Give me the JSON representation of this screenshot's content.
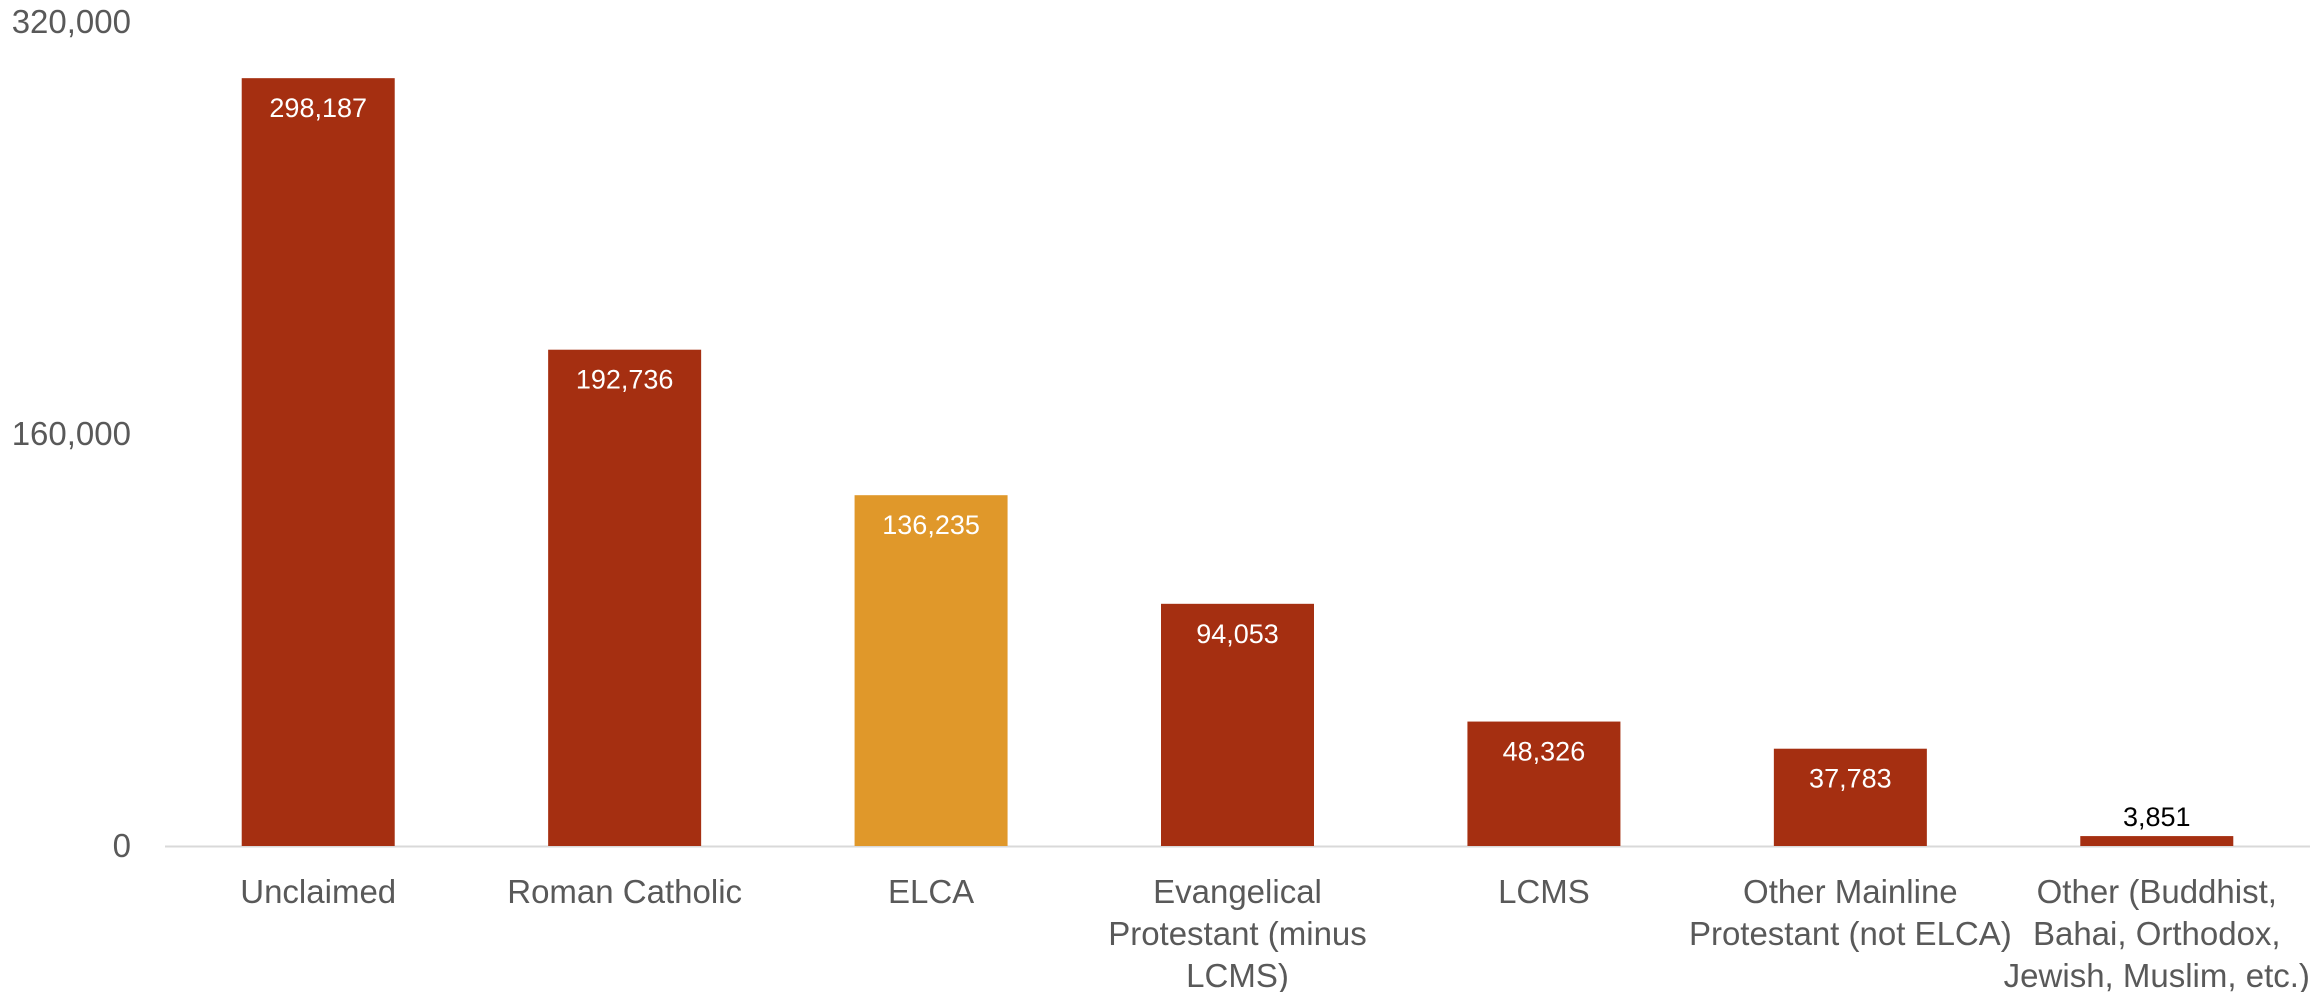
{
  "chart_data": {
    "type": "bar",
    "title": "",
    "xlabel": "",
    "ylabel": "",
    "categories": [
      "Unclaimed",
      "Roman Catholic",
      "ELCA",
      "Evangelical Protestant (minus LCMS)",
      "LCMS",
      "Other Mainline Protestant (not ELCA)",
      "Other (Buddhist, Bahai, Orthodox, Jewish, Muslim, etc.)"
    ],
    "category_label_lines": [
      [
        "Unclaimed"
      ],
      [
        "Roman Catholic"
      ],
      [
        "ELCA"
      ],
      [
        "Evangelical",
        "Protestant (minus",
        "LCMS)"
      ],
      [
        "LCMS"
      ],
      [
        "Other Mainline",
        "Protestant (not ELCA)"
      ],
      [
        "Other (Buddhist,",
        "Bahai, Orthodox,",
        "Jewish, Muslim, etc.)"
      ]
    ],
    "values": [
      298187,
      192736,
      136235,
      94053,
      48326,
      37783,
      3851
    ],
    "data_labels": [
      "298,187",
      "192,736",
      "136,235",
      "94,053",
      "48,326",
      "37,783",
      "3,851"
    ],
    "ylim": [
      0,
      320000
    ],
    "yticks": [
      0,
      160000,
      320000
    ],
    "ytick_labels": [
      "0",
      "160,000",
      "320,000"
    ],
    "grid": false,
    "legend": "none",
    "colors": {
      "bar_default": "#A52F11",
      "bar_highlight": "#E0982A",
      "highlight_index": 2,
      "axis_line": "#D9D9D9",
      "tick_text": "#595959",
      "label_inside": "#FFFFFF",
      "label_outside": "#000000"
    }
  }
}
